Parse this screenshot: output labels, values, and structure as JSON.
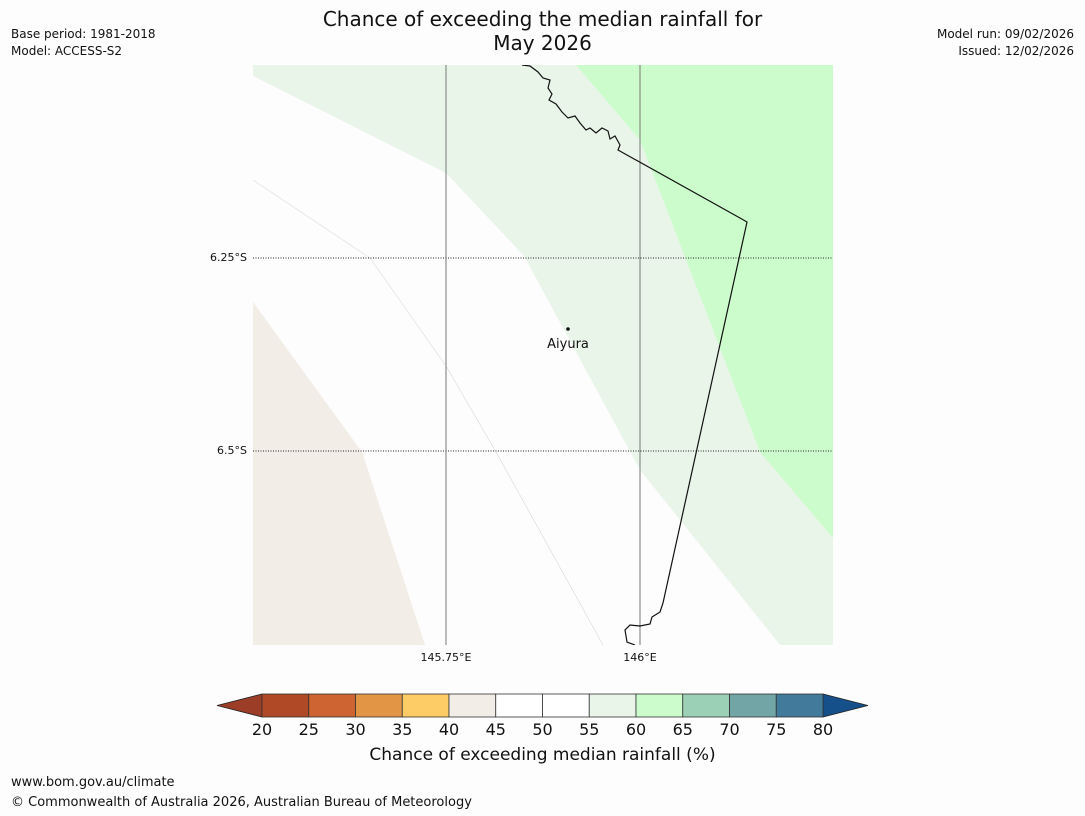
{
  "header": {
    "title_line1": "Chance of exceeding the median rainfall for",
    "title_line2": "May 2026",
    "base_period": "Base period: 1981-2018",
    "model": "Model: ACCESS-S2",
    "model_run": "Model run: 09/02/2026",
    "issued": "Issued: 12/02/2026"
  },
  "map": {
    "lat_labels": [
      "6.25°S",
      "6.5°S"
    ],
    "lon_labels": [
      "145.75°E",
      "146°E"
    ],
    "place": "Aiyura",
    "colors": {
      "band_40_45": "#f2ede6",
      "band_45_55": "#fdfdfd",
      "band_55_60": "#eaf5ea",
      "band_60_65": "#ccfccc"
    }
  },
  "legend": {
    "title": "Chance of exceeding median rainfall (%)",
    "ticks": [
      "20",
      "25",
      "30",
      "35",
      "40",
      "45",
      "50",
      "55",
      "60",
      "65",
      "70",
      "75",
      "80"
    ],
    "colors": [
      "#b04a26",
      "#cd6432",
      "#e39546",
      "#fdcc67",
      "#f2ede6",
      "#ffffff",
      "#ffffff",
      "#eaf5ea",
      "#ccfccc",
      "#9bcfb6",
      "#72a6a6",
      "#417a9a"
    ],
    "low_extend_color": "#9b3d27",
    "high_extend_color": "#16508a"
  },
  "footer": {
    "url": "www.bom.gov.au/climate",
    "copyright": "© Commonwealth of Australia 2026, Australian Bureau of Meteorology"
  }
}
